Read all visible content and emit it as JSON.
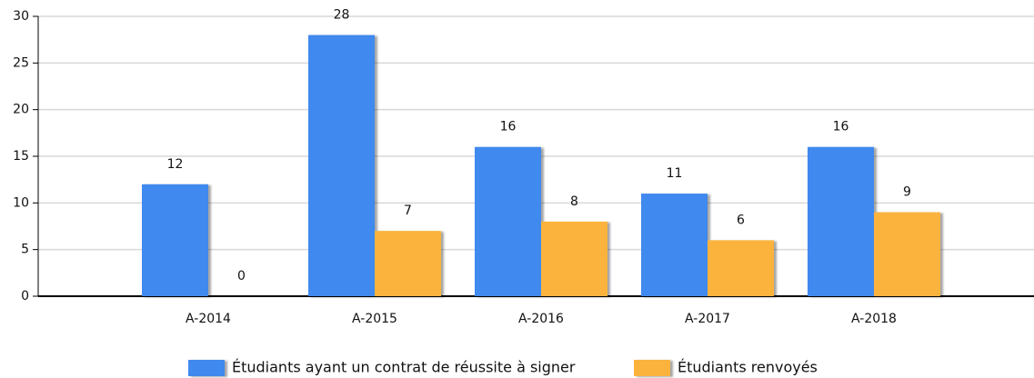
{
  "chart_data": {
    "type": "bar",
    "categories": [
      "A-2014",
      "A-2015",
      "A-2016",
      "A-2017",
      "A-2018"
    ],
    "series": [
      {
        "name": "Étudiants ayant un contrat de réussite à signer",
        "color": "#4189ee",
        "values": [
          12,
          28,
          16,
          11,
          16
        ]
      },
      {
        "name": "Étudiants renvoyés",
        "color": "#fbb33e",
        "values": [
          0,
          7,
          8,
          6,
          9
        ]
      }
    ],
    "ylim": [
      0,
      30
    ],
    "yticks": [
      0,
      5,
      10,
      15,
      20,
      25,
      30
    ],
    "grid": true,
    "legend": "bottom"
  }
}
